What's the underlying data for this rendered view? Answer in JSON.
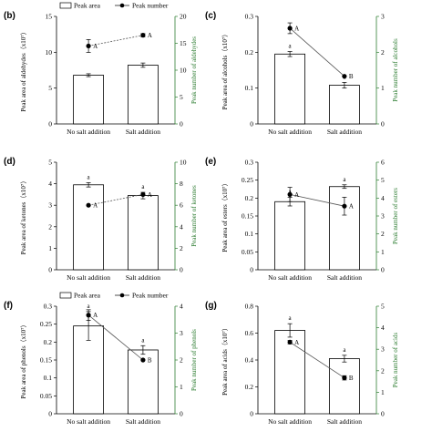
{
  "chart_data": [
    {
      "type": "bar",
      "panel": "(b)",
      "categories": [
        "No salt addition",
        "Salt addition"
      ],
      "ylabel": "Peak area of aldehydes（x10⁷）",
      "ylabel_right": "Peak number of aldehydes",
      "ylim": [
        0,
        15
      ],
      "yticks": [
        0,
        5,
        10,
        15
      ],
      "y2lim": [
        0,
        20
      ],
      "y2ticks": [
        0,
        5,
        10,
        15,
        20
      ],
      "series": [
        {
          "name": "Peak area",
          "kind": "bar",
          "values": [
            6.8,
            8.2
          ],
          "errors": [
            0.2,
            0.3
          ],
          "labels": [
            "",
            ""
          ]
        },
        {
          "name": "Peak number",
          "kind": "line",
          "values": [
            14.5,
            16.5
          ],
          "errors": [
            1.2,
            0.3
          ],
          "labels": [
            "A",
            "A"
          ]
        }
      ],
      "legend": [
        "Peak area",
        "Peak number"
      ]
    },
    {
      "type": "bar",
      "panel": "(c)",
      "categories": [
        "No salt addition",
        "Salt addition"
      ],
      "ylabel": "Peak area of alcohols（x10⁷）",
      "ylabel_right": "Peak number of alcohols",
      "ylim": [
        0,
        0.3
      ],
      "yticks": [
        0,
        0.1,
        0.2,
        0.3
      ],
      "y2lim": [
        0,
        3
      ],
      "y2ticks": [
        0,
        1,
        2,
        3
      ],
      "series": [
        {
          "name": "Peak area",
          "kind": "bar",
          "values": [
            0.195,
            0.108
          ],
          "errors": [
            0.007,
            0.008
          ],
          "labels": [
            "a",
            "a"
          ]
        },
        {
          "name": "Peak number",
          "kind": "line",
          "values": [
            2.67,
            1.33
          ],
          "errors": [
            0.15,
            0.0
          ],
          "labels": [
            "A",
            "B"
          ]
        }
      ]
    },
    {
      "type": "bar",
      "panel": "(d)",
      "categories": [
        "No salt addition",
        "Salt addition"
      ],
      "ylabel": "Peak area of ketones（x10⁷）",
      "ylabel_right": "Peak number of ketones",
      "ylim": [
        0,
        5
      ],
      "yticks": [
        0,
        1,
        2,
        3,
        4,
        5
      ],
      "y2lim": [
        0,
        10
      ],
      "y2ticks": [
        0,
        2,
        4,
        6,
        8,
        10
      ],
      "series": [
        {
          "name": "Peak area",
          "kind": "bar",
          "values": [
            3.95,
            3.45
          ],
          "errors": [
            0.1,
            0.15
          ],
          "labels": [
            "a",
            "a"
          ]
        },
        {
          "name": "Peak number",
          "kind": "line",
          "values": [
            6.0,
            7.0
          ],
          "errors": [
            0.0,
            0.0
          ],
          "labels": [
            "A",
            "A"
          ]
        }
      ]
    },
    {
      "type": "bar",
      "panel": "(e)",
      "categories": [
        "No salt addition",
        "Salt addition"
      ],
      "ylabel": "Peak area of esters（x10⁷）",
      "ylabel_right": "Peak number of esters",
      "ylim": [
        0,
        0.3
      ],
      "yticks": [
        0,
        0.05,
        0.1,
        0.15,
        0.2,
        0.25,
        0.3
      ],
      "y2lim": [
        0,
        6
      ],
      "y2ticks": [
        0,
        1,
        2,
        3,
        4,
        5,
        6
      ],
      "series": [
        {
          "name": "Peak area",
          "kind": "bar",
          "values": [
            0.19,
            0.232
          ],
          "errors": [
            0.012,
            0.005
          ],
          "labels": [
            "a",
            "a"
          ]
        },
        {
          "name": "Peak number",
          "kind": "line",
          "values": [
            4.2,
            3.55
          ],
          "errors": [
            0.4,
            0.5
          ],
          "labels": [
            "A",
            "A"
          ]
        }
      ]
    },
    {
      "type": "bar",
      "panel": "(f)",
      "categories": [
        "No salt addition",
        "Salt addition"
      ],
      "ylabel": "Peak area of phenols（x10⁷）",
      "ylabel_right": "Peak number of phenols",
      "ylim": [
        0,
        0.3
      ],
      "yticks": [
        0,
        0.05,
        0.1,
        0.15,
        0.2,
        0.25,
        0.3
      ],
      "y2lim": [
        0,
        4
      ],
      "y2ticks": [
        0,
        1,
        2,
        3,
        4
      ],
      "series": [
        {
          "name": "Peak area",
          "kind": "bar",
          "values": [
            0.245,
            0.178
          ],
          "errors": [
            0.04,
            0.012
          ],
          "labels": [
            "a",
            "a"
          ]
        },
        {
          "name": "Peak number",
          "kind": "line",
          "values": [
            3.67,
            2.0
          ],
          "errors": [
            0.2,
            0.0
          ],
          "labels": [
            "A",
            "B"
          ]
        }
      ],
      "legend": [
        "Peak area",
        "Peak number"
      ]
    },
    {
      "type": "bar",
      "panel": "(g)",
      "categories": [
        "No salt addition",
        "Salt addition"
      ],
      "ylabel": "Peak area of acids（x10⁷）",
      "ylabel_right": "Peak number of acids",
      "ylim": [
        0,
        0.8
      ],
      "yticks": [
        0,
        0.2,
        0.4,
        0.6,
        0.8
      ],
      "y2lim": [
        0,
        5
      ],
      "y2ticks": [
        0,
        1,
        2,
        3,
        4,
        5
      ],
      "series": [
        {
          "name": "Peak area",
          "kind": "bar",
          "values": [
            0.62,
            0.41
          ],
          "errors": [
            0.05,
            0.025
          ],
          "labels": [
            "a",
            "a"
          ]
        },
        {
          "name": "Peak number",
          "kind": "line",
          "values": [
            3.33,
            1.67
          ],
          "errors": [
            0.08,
            0.1
          ],
          "labels": [
            "A",
            "B"
          ]
        }
      ]
    }
  ]
}
